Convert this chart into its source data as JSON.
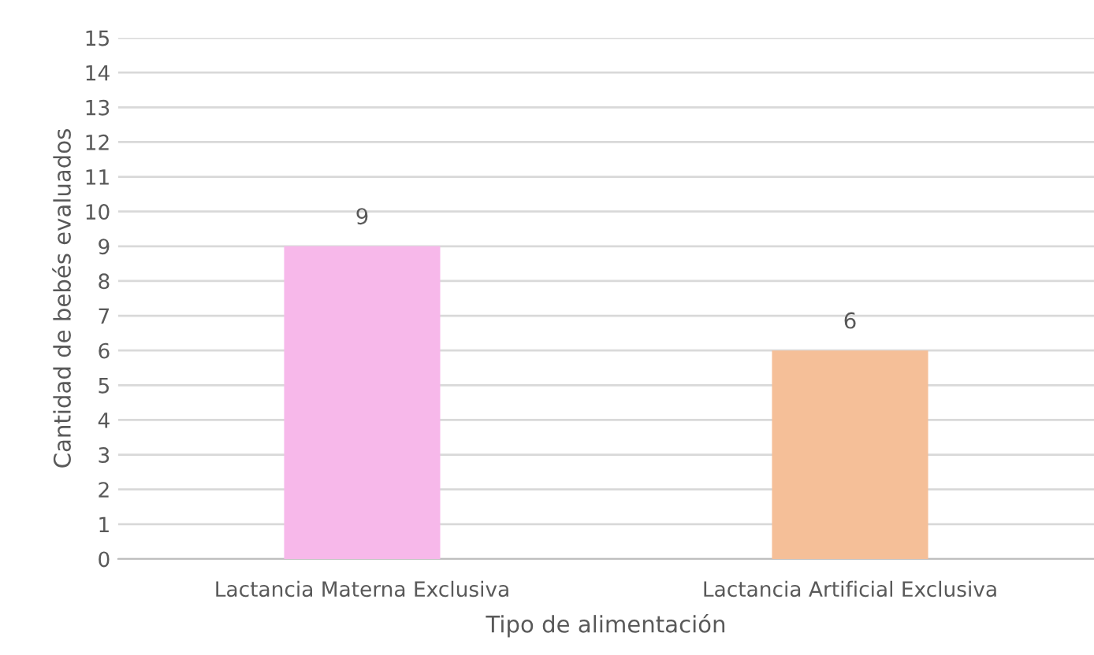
{
  "chart_data": {
    "type": "bar",
    "categories": [
      "Lactancia Materna Exclusiva",
      "Lactancia Artificial Exclusiva"
    ],
    "values": [
      9,
      6
    ],
    "colors": [
      "#f7b8ea",
      "#f5bf98"
    ],
    "xlabel": "Tipo de alimentación",
    "ylabel": "Cantidad de bebés evaluados",
    "ylim": [
      0,
      15
    ],
    "yticks": [
      0,
      1,
      2,
      3,
      4,
      5,
      6,
      7,
      8,
      9,
      10,
      11,
      12,
      13,
      14,
      15
    ],
    "grid": "y",
    "data_labels": true
  }
}
